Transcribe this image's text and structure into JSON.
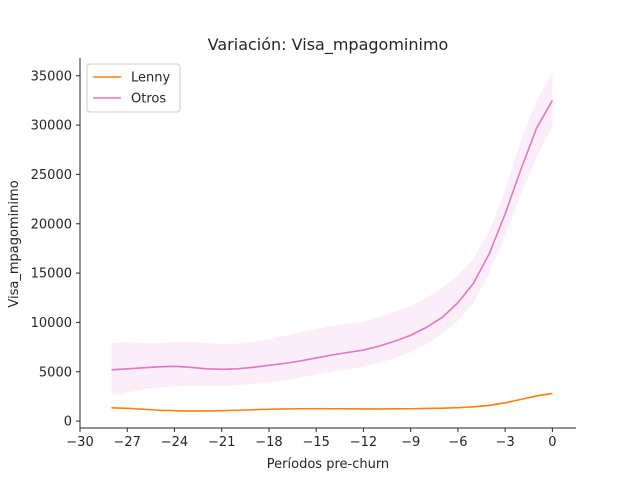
{
  "chart_data": {
    "type": "line",
    "title": "Variación: Visa_mpagominimo",
    "xlabel": "Períodos pre-churn",
    "ylabel": "Visa_mpagominimo",
    "xlim": [
      -30,
      1.5
    ],
    "ylim": [
      -700,
      36800
    ],
    "xticks": [
      -30,
      -27,
      -24,
      -21,
      -18,
      -15,
      -12,
      -9,
      -6,
      -3,
      0
    ],
    "xtick_labels": [
      "−30",
      "−27",
      "−24",
      "−21",
      "−18",
      "−15",
      "−12",
      "−9",
      "−6",
      "−3",
      "0"
    ],
    "yticks": [
      0,
      5000,
      10000,
      15000,
      20000,
      25000,
      30000,
      35000
    ],
    "ytick_labels": [
      "0",
      "5000",
      "10000",
      "15000",
      "20000",
      "25000",
      "30000",
      "35000"
    ],
    "grid": false,
    "legend_position": "top-left",
    "x": [
      -28,
      -27,
      -26,
      -25,
      -24,
      -23,
      -22,
      -21,
      -20,
      -19,
      -18,
      -17,
      -16,
      -15,
      -14,
      -13,
      -12,
      -11,
      -10,
      -9,
      -8,
      -7,
      -6,
      -5,
      -4,
      -3,
      -2,
      -1,
      0
    ],
    "series": [
      {
        "name": "Lenny",
        "color": "#ff7f0e",
        "values": [
          1350,
          1300,
          1200,
          1100,
          1050,
          1020,
          1030,
          1050,
          1100,
          1150,
          1200,
          1230,
          1250,
          1260,
          1250,
          1240,
          1230,
          1230,
          1240,
          1250,
          1280,
          1310,
          1360,
          1450,
          1600,
          1850,
          2200,
          2550,
          2800
        ]
      },
      {
        "name": "Otros",
        "color": "#e377c2",
        "band_color": "#e377c2",
        "values": [
          5200,
          5300,
          5400,
          5500,
          5550,
          5450,
          5300,
          5250,
          5300,
          5450,
          5650,
          5850,
          6100,
          6400,
          6700,
          6950,
          7200,
          7600,
          8100,
          8700,
          9500,
          10500,
          12000,
          14000,
          17000,
          21000,
          25500,
          29700,
          32500
        ],
        "lower": [
          2600,
          2900,
          3200,
          3400,
          3500,
          3550,
          3550,
          3550,
          3650,
          3750,
          3900,
          4100,
          4400,
          4700,
          5000,
          5250,
          5500,
          5900,
          6400,
          7000,
          7800,
          8800,
          10200,
          12000,
          15000,
          18700,
          23000,
          26800,
          29800
        ],
        "upper": [
          7900,
          8000,
          7900,
          7900,
          8000,
          8050,
          7900,
          7800,
          7850,
          8050,
          8300,
          8650,
          9000,
          9350,
          9650,
          9900,
          10100,
          10550,
          11100,
          11700,
          12500,
          13500,
          14800,
          16500,
          19300,
          23400,
          28500,
          32500,
          35300
        ]
      }
    ]
  }
}
